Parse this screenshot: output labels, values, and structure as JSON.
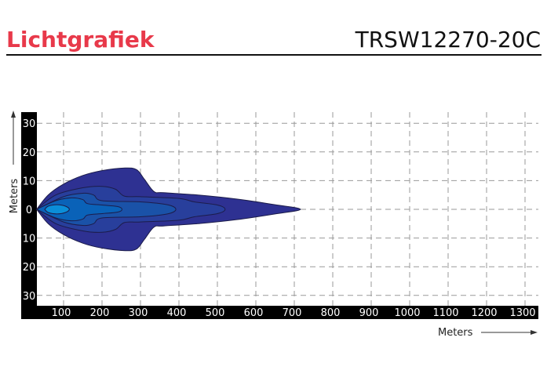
{
  "header": {
    "title": "Lichtgrafiek",
    "model": "TRSW12270-20C"
  },
  "chart_data": {
    "type": "area",
    "title": "",
    "xlabel": "Meters",
    "ylabel": "Meters",
    "xlim": [
      30,
      1340
    ],
    "ylim": [
      -34,
      34
    ],
    "xticks": [
      100,
      200,
      300,
      400,
      500,
      600,
      700,
      800,
      900,
      1000,
      1100,
      1200,
      1300
    ],
    "yticks": [
      30,
      20,
      10,
      0,
      -10,
      -20,
      -30
    ],
    "ytick_labels": [
      "30",
      "20",
      "10",
      "0",
      "10",
      "20",
      "30"
    ],
    "grid": true,
    "symmetric_about_zero": true,
    "contours": [
      {
        "color": "#2e3192",
        "upper": [
          [
            30,
            0
          ],
          [
            60,
            5
          ],
          [
            100,
            8.8
          ],
          [
            150,
            11.8
          ],
          [
            200,
            13.5
          ],
          [
            260,
            14.4
          ],
          [
            290,
            13.8
          ],
          [
            310,
            10.5
          ],
          [
            335,
            6.2
          ],
          [
            360,
            5.8
          ],
          [
            450,
            5
          ],
          [
            550,
            3.6
          ],
          [
            650,
            1.6
          ],
          [
            716,
            0
          ]
        ]
      },
      {
        "color": "#283f9c",
        "upper": [
          [
            30,
            0
          ],
          [
            80,
            5
          ],
          [
            150,
            7.5
          ],
          [
            200,
            8
          ],
          [
            235,
            7
          ],
          [
            258,
            4.6
          ],
          [
            300,
            4.4
          ],
          [
            400,
            3.8
          ],
          [
            440,
            2.6
          ],
          [
            500,
            1.5
          ],
          [
            520,
            0
          ]
        ]
      },
      {
        "color": "#1a52a8",
        "upper": [
          [
            30,
            0
          ],
          [
            100,
            4.4
          ],
          [
            150,
            5.6
          ],
          [
            178,
            5
          ],
          [
            200,
            3
          ],
          [
            300,
            2.6
          ],
          [
            370,
            1.6
          ],
          [
            392,
            0
          ]
        ]
      },
      {
        "color": "#0a62b8",
        "upper": [
          [
            30,
            0
          ],
          [
            80,
            3
          ],
          [
            120,
            4
          ],
          [
            150,
            3.4
          ],
          [
            162,
            2
          ],
          [
            200,
            1.5
          ],
          [
            240,
            1
          ],
          [
            252,
            0
          ]
        ]
      },
      {
        "color": "#0b8ed8",
        "upper": [
          [
            51,
            0
          ],
          [
            60,
            1.1
          ],
          [
            83,
            1.6
          ],
          [
            105,
            1.1
          ],
          [
            115,
            0
          ]
        ]
      }
    ]
  }
}
